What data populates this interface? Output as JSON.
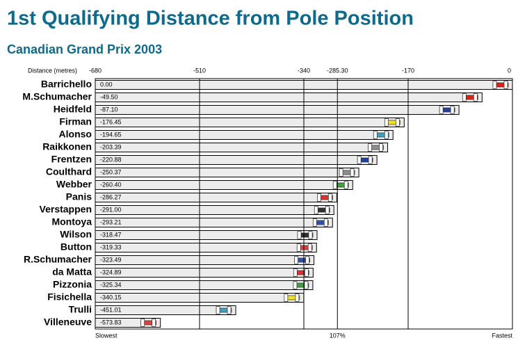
{
  "chart_data": {
    "type": "bar",
    "title": "1st Qualifying Distance from Pole Position",
    "subtitle": "Canadian Grand Prix 2003",
    "axis_label": "Distance (metres)",
    "annotations": [
      "Slowest",
      "107%",
      "Fastest"
    ],
    "categories": [
      "Barrichello",
      "M.Schumacher",
      "Heidfeld",
      "Firman",
      "Alonso",
      "Raikkonen",
      "Frentzen",
      "Coulthard",
      "Webber",
      "Panis",
      "Verstappen",
      "Montoya",
      "Wilson",
      "Button",
      "R.Schumacher",
      "da Matta",
      "Pizzonia",
      "Fisichella",
      "Trulli",
      "Villeneuve"
    ],
    "values": [
      0,
      -49.5,
      -87.1,
      -176.45,
      -194.65,
      -203.39,
      -220.88,
      -250.37,
      -260.4,
      -286.27,
      -291,
      -293.21,
      -318.47,
      -319.33,
      -323.49,
      -324.89,
      -325.34,
      -340.15,
      -451.01,
      -573.83
    ],
    "value_labels": [
      "0.00",
      "-49.50",
      "-87.10",
      "-176.45",
      "-194.65",
      "-203.39",
      "-220.88",
      "-250.37",
      "-260.40",
      "-286.27",
      "-291.00",
      "-293.21",
      "-318.47",
      "-319.33",
      "-323.49",
      "-324.89",
      "-325.34",
      "-340.15",
      "-451.01",
      "-573.83"
    ],
    "colors": [
      "#e02010",
      "#e02010",
      "#2040a0",
      "#f0e020",
      "#40a0c0",
      "#909090",
      "#2040a0",
      "#909090",
      "#40a040",
      "#e03030",
      "#303030",
      "#3050b0",
      "#303030",
      "#e04040",
      "#3050b0",
      "#e03030",
      "#40a040",
      "#f0e020",
      "#40a0c0",
      "#e04040"
    ],
    "color": "#ececec",
    "xlim": [
      -680,
      0
    ],
    "xticks": [
      -680,
      -510,
      -340,
      {
        "value": -285.3,
        "label": "-285.30"
      },
      -170,
      0
    ],
    "grid": true
  }
}
